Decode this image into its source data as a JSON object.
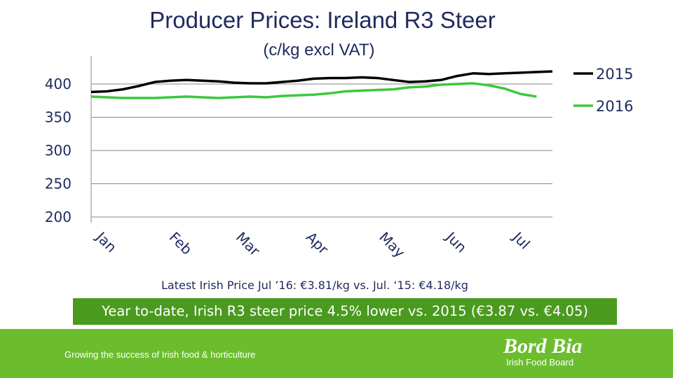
{
  "chart_data": {
    "type": "line",
    "title": "Producer Prices: Ireland R3 Steer",
    "subtitle": "(c/kg excl VAT)",
    "ylim": [
      200,
      420
    ],
    "yticks": [
      200,
      250,
      300,
      350,
      400
    ],
    "x_week_count": 30,
    "month_labels": [
      "Jan",
      "Feb",
      "Mar",
      "Apr",
      "May",
      "Jun",
      "Jul"
    ],
    "month_positions_week": [
      0.7,
      5.3,
      9.5,
      13.9,
      18.5,
      22.7,
      26.9
    ],
    "legend_position": "right",
    "series": [
      {
        "name": "2015",
        "color": "#000000",
        "values": [
          388,
          389,
          392,
          397,
          403,
          405,
          406,
          405,
          404,
          402,
          401,
          401,
          403,
          405,
          408,
          409,
          409,
          410,
          409,
          406,
          403,
          404,
          406,
          412,
          416,
          415,
          416,
          417,
          418,
          419
        ]
      },
      {
        "name": "2016",
        "color": "#3cc83c",
        "values": [
          381,
          380,
          379,
          379,
          379,
          380,
          381,
          380,
          379,
          380,
          381,
          380,
          382,
          383,
          384,
          386,
          389,
          390,
          391,
          392,
          395,
          396,
          399,
          400,
          401,
          398,
          393,
          385,
          381
        ]
      }
    ]
  },
  "notes": {
    "latest": "Latest Irish Price Jul ’16: €3.81/kg vs. Jul. ‘15: €4.18/kg",
    "ytd": "Year to-date, Irish R3 steer price 4.5% lower vs. 2015 (€3.87 vs. €4.05)"
  },
  "footer": {
    "tagline": "Growing the success of Irish food & horticulture",
    "logo_name": "Bord Bia",
    "logo_sub": "Irish Food Board"
  }
}
